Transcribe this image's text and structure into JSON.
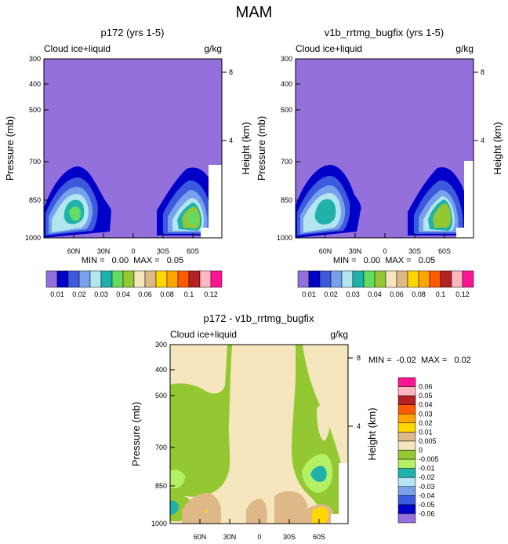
{
  "figure_title": "MAM",
  "chart_data": [
    {
      "type": "contour",
      "title": "p172 (yrs 1-5)",
      "left_label": "Cloud ice+liquid",
      "right_label": "g/kg",
      "ylabel": "Pressure (mb)",
      "ylabel2": "Height (km)",
      "yticks": [
        "300",
        "400",
        "500",
        "700",
        "850",
        "1000"
      ],
      "yticks2": [
        "8",
        "4"
      ],
      "xticks": [
        "60N",
        "30N",
        "0",
        "30S",
        "60S"
      ],
      "minmax": "MIN =   0.00  MAX =   0.05",
      "colorbar_labels": [
        "0.01",
        "0.02",
        "0.03",
        "0.04",
        "0.06",
        "0.08",
        "0.1",
        "0.12"
      ],
      "colorbar_colors": [
        "#9370db",
        "#0000c8",
        "#3c5ade",
        "#78a0ec",
        "#b4e6f0",
        "#20b2aa",
        "#64dc64",
        "#94c832",
        "#f5e6be",
        "#deb887",
        "#ffd700",
        "#ffa500",
        "#ff5a00",
        "#b22222",
        "#ffb6c1",
        "#ff1493"
      ],
      "min": 0.0,
      "max": 0.05
    },
    {
      "type": "contour",
      "title": "v1b_rrtmg_bugfix (yrs 1-5)",
      "left_label": "Cloud ice+liquid",
      "right_label": "g/kg",
      "ylabel": "Pressure (mb)",
      "ylabel2": "Height (km)",
      "yticks": [
        "300",
        "400",
        "500",
        "700",
        "850",
        "1000"
      ],
      "yticks2": [
        "8",
        "4"
      ],
      "xticks": [
        "60N",
        "30N",
        "0",
        "30S",
        "60S"
      ],
      "minmax": "MIN =   0.00  MAX =   0.05",
      "colorbar_labels": [
        "0.01",
        "0.02",
        "0.03",
        "0.04",
        "0.06",
        "0.08",
        "0.1",
        "0.12"
      ],
      "colorbar_colors": [
        "#9370db",
        "#0000c8",
        "#3c5ade",
        "#78a0ec",
        "#b4e6f0",
        "#20b2aa",
        "#64dc64",
        "#94c832",
        "#f5e6be",
        "#deb887",
        "#ffd700",
        "#ffa500",
        "#ff5a00",
        "#b22222",
        "#ffb6c1",
        "#ff1493"
      ],
      "min": 0.0,
      "max": 0.05
    },
    {
      "type": "contour",
      "title": "p172 - v1b_rrtmg_bugfix",
      "left_label": "Cloud ice+liquid",
      "right_label": "g/kg",
      "ylabel": "Pressure (mb)",
      "ylabel2": "Height (km)",
      "yticks": [
        "300",
        "400",
        "500",
        "700",
        "850",
        "1000"
      ],
      "yticks2": [
        "8",
        "4"
      ],
      "xticks": [
        "60N",
        "30N",
        "0",
        "30S",
        "60S"
      ],
      "minmax": "MIN =  -0.02  MAX =   0.02",
      "colorbar_labels": [
        "0.06",
        "0.05",
        "0.04",
        "0.03",
        "0.02",
        "0.01",
        "0.005",
        "0",
        "-0.005",
        "-0.01",
        "-0.02",
        "-0.03",
        "-0.04",
        "-0.05",
        "-0.06"
      ],
      "colorbar_colors": [
        "#ff1493",
        "#ffb6c1",
        "#b22222",
        "#ff5a00",
        "#ffa500",
        "#ffd700",
        "#deb887",
        "#f5e6be",
        "#94c832",
        "#b4f064",
        "#20b2aa",
        "#b4e6f0",
        "#78a0ec",
        "#3c5ade",
        "#0000c8",
        "#9370db"
      ],
      "min": -0.02,
      "max": 0.02
    }
  ]
}
